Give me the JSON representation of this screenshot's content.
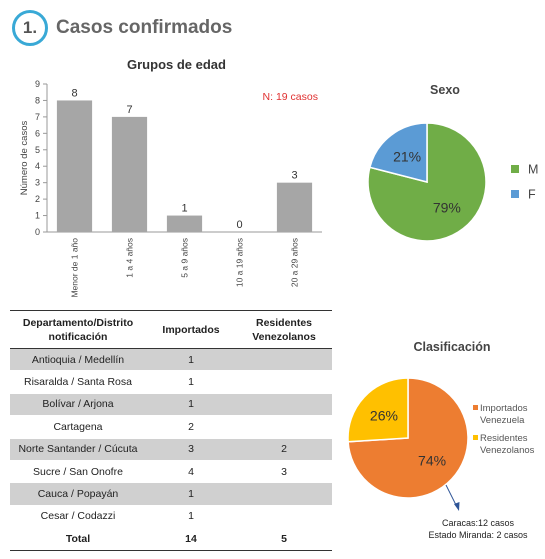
{
  "header": {
    "number": "1.",
    "title": "Casos confirmados"
  },
  "colors": {
    "accent_circle": "#39a9d6",
    "bar": "#a6a6a6",
    "note": "#e03030",
    "green": "#70ad47",
    "blue": "#5b9bd5",
    "orange": "#ed7d31",
    "yellow": "#ffc000"
  },
  "chart_data": [
    {
      "type": "bar",
      "title": "Grupos de edad",
      "ylabel": "Número de casos",
      "xlabel": "",
      "categories": [
        "Menor de 1 año",
        "1 a 4 años",
        "5 a 9 años",
        "10 a 19 años",
        "20 a 29 años"
      ],
      "values": [
        8,
        7,
        1,
        0,
        3
      ],
      "data_labels": [
        "8",
        "7",
        "1",
        "0",
        "3"
      ],
      "ylim": [
        0,
        9
      ],
      "yticks": [
        "0",
        "1",
        "2",
        "3",
        "4",
        "5",
        "6",
        "7",
        "8",
        "9"
      ],
      "annotation": "N: 19 casos",
      "grid": false
    },
    {
      "type": "pie",
      "title": "Sexo",
      "labels": [
        "M",
        "F"
      ],
      "values": [
        79,
        21
      ],
      "value_labels": [
        "79%",
        "21%"
      ],
      "colors": [
        "#70ad47",
        "#5b9bd5"
      ],
      "legend": "right"
    },
    {
      "type": "pie",
      "title": "Clasificación",
      "labels": [
        "Importados Venezuela",
        "Residentes Venezolanos"
      ],
      "legend_lines": [
        [
          "Importados",
          "Venezuela"
        ],
        [
          "Residentes",
          "Venezolanos"
        ]
      ],
      "values": [
        74,
        26
      ],
      "value_labels": [
        "74%",
        "26%"
      ],
      "colors": [
        "#ed7d31",
        "#ffc000"
      ],
      "legend": "right",
      "annotations": [
        "Caracas:12 casos",
        "Estado Miranda: 2 casos"
      ]
    }
  ],
  "table": {
    "headers": [
      "Departamento/Distrito notificación",
      "Importados",
      "Residentes Venezolanos"
    ],
    "rows": [
      [
        "Antioquia / Medellín",
        "1",
        ""
      ],
      [
        "Risaralda / Santa Rosa",
        "1",
        ""
      ],
      [
        "Bolívar / Arjona",
        "1",
        ""
      ],
      [
        "Cartagena",
        "2",
        ""
      ],
      [
        "Norte Santander / Cúcuta",
        "3",
        "2"
      ],
      [
        "Sucre / San Onofre",
        "4",
        "3"
      ],
      [
        "Cauca / Popayán",
        "1",
        ""
      ],
      [
        "Cesar / Codazzi",
        "1",
        ""
      ]
    ],
    "total": [
      "Total",
      "14",
      "5"
    ]
  }
}
